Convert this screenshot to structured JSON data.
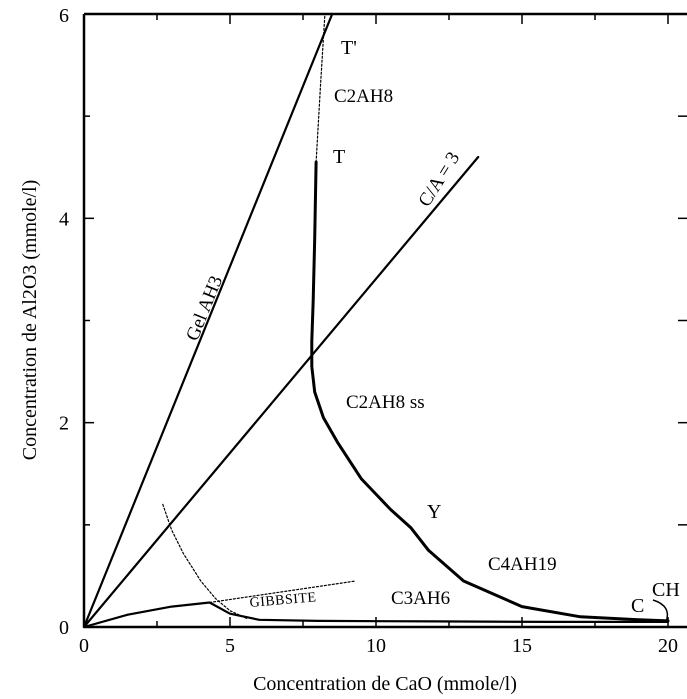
{
  "chart_data": {
    "type": "line",
    "title": "",
    "xlabel": "Concentration de CaO (mmole/l)",
    "ylabel": "Concentration de Al2O3 (mmole/l)",
    "xlim": [
      0,
      20.4
    ],
    "ylim": [
      0,
      6
    ],
    "x_ticks": [
      "0",
      "5",
      "10",
      "15",
      "20"
    ],
    "x_tick_values": [
      0,
      5,
      10,
      15,
      20
    ],
    "y_ticks": [
      "0",
      "2",
      "4",
      "6"
    ],
    "y_tick_values": [
      0,
      2,
      4,
      6
    ],
    "grid": false,
    "legend": "none",
    "series": [
      {
        "style": "solid",
        "x": [
          0,
          8.5
        ],
        "y": [
          0,
          6.0
        ]
      },
      {
        "style": "solid",
        "x": [
          0,
          13.5
        ],
        "y": [
          0,
          4.6
        ]
      },
      {
        "style": "solid",
        "x": [
          7.95,
          7.9,
          7.85,
          7.8,
          7.8,
          7.9,
          8.2,
          8.7,
          9.5,
          10.5,
          11.2,
          11.8,
          13.0,
          15.0,
          17.0,
          19.0,
          20.0
        ],
        "y": [
          4.55,
          3.8,
          3.2,
          2.8,
          2.55,
          2.3,
          2.05,
          1.8,
          1.45,
          1.15,
          0.97,
          0.75,
          0.45,
          0.2,
          0.1,
          0.07,
          0.06
        ]
      },
      {
        "style": "solid",
        "x": [
          0,
          1.5,
          3.0,
          4.3,
          5.0,
          6.0,
          8.0,
          12.0,
          16.0,
          20.0
        ],
        "y": [
          0,
          0.12,
          0.2,
          0.24,
          0.13,
          0.07,
          0.06,
          0.055,
          0.05,
          0.05
        ]
      },
      {
        "style": "dotted",
        "x": [
          7.95,
          8.1,
          8.25
        ],
        "y": [
          4.55,
          5.3,
          6.0
        ]
      },
      {
        "style": "dotted",
        "x": [
          2.7,
          3.0,
          3.4,
          4.0,
          4.5,
          5.0,
          5.6
        ],
        "y": [
          1.2,
          0.95,
          0.72,
          0.45,
          0.28,
          0.16,
          0.08
        ]
      },
      {
        "style": "dotted",
        "x": [
          4.3,
          9.3
        ],
        "y": [
          0.24,
          0.45
        ]
      }
    ],
    "labels": {
      "t_prime": "T'",
      "c2ah8": "C2AH8",
      "t": "T",
      "c_over_a": "C/A = 3",
      "gel": "Gel AH3",
      "c2ah8ss": "C2AH8 ss",
      "y": "Y",
      "c4ah19": "C4AH19",
      "gibbsite": "GIBBSITE",
      "c3ah6": "C3AH6",
      "c": "C",
      "ch": "CH"
    }
  }
}
